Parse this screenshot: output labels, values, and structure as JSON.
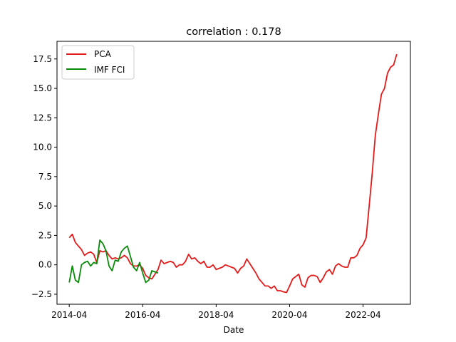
{
  "chart_data": {
    "type": "line",
    "title": "correlation : 0.178",
    "xlabel": "Date",
    "ylabel": "",
    "xlim": [
      "2013-12-01",
      "2023-07-15"
    ],
    "ylim": [
      -3.35,
      19.0
    ],
    "x_ticks": [
      "2014-04",
      "2016-04",
      "2018-04",
      "2020-04",
      "2022-04"
    ],
    "y_ticks": [
      -2.5,
      0.0,
      2.5,
      5.0,
      7.5,
      10.0,
      12.5,
      15.0,
      17.5
    ],
    "y_tick_labels": [
      "−2.5",
      "0.0",
      "2.5",
      "5.0",
      "7.5",
      "10.0",
      "12.5",
      "15.0",
      "17.5"
    ],
    "legend": {
      "placement": "upper-left"
    },
    "colors": {
      "PCA": "#e41a1a",
      "IMF FCI": "#0a8a0a"
    },
    "series": [
      {
        "name": "PCA",
        "color": "#e41a1a",
        "points": [
          [
            "2014-04",
            2.3
          ],
          [
            "2014-05",
            2.6
          ],
          [
            "2014-06",
            1.9
          ],
          [
            "2014-07",
            1.6
          ],
          [
            "2014-08",
            1.3
          ],
          [
            "2014-09",
            0.8
          ],
          [
            "2014-10",
            1.0
          ],
          [
            "2014-11",
            1.1
          ],
          [
            "2014-12",
            0.9
          ],
          [
            "2015-01",
            0.2
          ],
          [
            "2015-02",
            1.2
          ],
          [
            "2015-03",
            1.1
          ],
          [
            "2015-04",
            1.2
          ],
          [
            "2015-05",
            0.8
          ],
          [
            "2015-06",
            0.5
          ],
          [
            "2015-07",
            0.6
          ],
          [
            "2015-08",
            0.5
          ],
          [
            "2015-09",
            0.6
          ],
          [
            "2015-10",
            0.8
          ],
          [
            "2015-11",
            0.6
          ],
          [
            "2015-12",
            0.1
          ],
          [
            "2016-01",
            -0.1
          ],
          [
            "2016-02",
            -0.1
          ],
          [
            "2016-03",
            0.0
          ],
          [
            "2016-04",
            -0.3
          ],
          [
            "2016-05",
            -0.9
          ],
          [
            "2016-06",
            -1.1
          ],
          [
            "2016-07",
            -1.2
          ],
          [
            "2016-08",
            -0.8
          ],
          [
            "2016-09",
            -0.4
          ],
          [
            "2016-10",
            0.4
          ],
          [
            "2016-11",
            0.1
          ],
          [
            "2016-12",
            0.2
          ],
          [
            "2017-01",
            0.3
          ],
          [
            "2017-02",
            0.2
          ],
          [
            "2017-03",
            -0.2
          ],
          [
            "2017-04",
            0.0
          ],
          [
            "2017-05",
            0.0
          ],
          [
            "2017-06",
            0.3
          ],
          [
            "2017-07",
            0.9
          ],
          [
            "2017-08",
            0.5
          ],
          [
            "2017-09",
            0.6
          ],
          [
            "2017-10",
            0.3
          ],
          [
            "2017-11",
            0.1
          ],
          [
            "2017-12",
            0.3
          ],
          [
            "2018-01",
            -0.2
          ],
          [
            "2018-02",
            -0.2
          ],
          [
            "2018-03",
            0.0
          ],
          [
            "2018-04",
            -0.4
          ],
          [
            "2018-05",
            -0.3
          ],
          [
            "2018-06",
            -0.2
          ],
          [
            "2018-07",
            0.0
          ],
          [
            "2018-08",
            -0.1
          ],
          [
            "2018-09",
            -0.2
          ],
          [
            "2018-10",
            -0.3
          ],
          [
            "2018-11",
            -0.7
          ],
          [
            "2018-12",
            -0.3
          ],
          [
            "2019-01",
            -0.1
          ],
          [
            "2019-02",
            0.5
          ],
          [
            "2019-03",
            0.1
          ],
          [
            "2019-04",
            -0.3
          ],
          [
            "2019-05",
            -0.7
          ],
          [
            "2019-06",
            -1.2
          ],
          [
            "2019-07",
            -1.5
          ],
          [
            "2019-08",
            -1.8
          ],
          [
            "2019-09",
            -1.8
          ],
          [
            "2019-10",
            -2.0
          ],
          [
            "2019-11",
            -1.8
          ],
          [
            "2019-12",
            -2.2
          ],
          [
            "2020-01",
            -2.2
          ],
          [
            "2020-02",
            -2.3
          ],
          [
            "2020-03",
            -2.35
          ],
          [
            "2020-04",
            -1.8
          ],
          [
            "2020-05",
            -1.2
          ],
          [
            "2020-06",
            -1.0
          ],
          [
            "2020-07",
            -0.8
          ],
          [
            "2020-08",
            -1.7
          ],
          [
            "2020-09",
            -1.9
          ],
          [
            "2020-10",
            -1.1
          ],
          [
            "2020-11",
            -0.9
          ],
          [
            "2020-12",
            -0.9
          ],
          [
            "2021-01",
            -1.0
          ],
          [
            "2021-02",
            -1.5
          ],
          [
            "2021-03",
            -1.1
          ],
          [
            "2021-04",
            -0.6
          ],
          [
            "2021-05",
            -0.4
          ],
          [
            "2021-06",
            -0.8
          ],
          [
            "2021-07",
            -0.1
          ],
          [
            "2021-08",
            0.1
          ],
          [
            "2021-09",
            -0.1
          ],
          [
            "2021-10",
            -0.2
          ],
          [
            "2021-11",
            -0.2
          ],
          [
            "2021-12",
            0.6
          ],
          [
            "2022-01",
            0.6
          ],
          [
            "2022-02",
            0.8
          ],
          [
            "2022-03",
            1.4
          ],
          [
            "2022-04",
            1.7
          ],
          [
            "2022-05",
            2.3
          ],
          [
            "2022-06",
            5.0
          ],
          [
            "2022-07",
            7.8
          ],
          [
            "2022-08",
            11.0
          ],
          [
            "2022-09",
            12.8
          ],
          [
            "2022-10",
            14.5
          ],
          [
            "2022-11",
            15.0
          ],
          [
            "2022-12",
            16.3
          ],
          [
            "2023-01",
            16.8
          ],
          [
            "2023-02",
            17.0
          ],
          [
            "2023-03",
            17.9
          ]
        ]
      },
      {
        "name": "IMF FCI",
        "color": "#0a8a0a",
        "points": [
          [
            "2014-04",
            -1.5
          ],
          [
            "2014-05",
            -0.1
          ],
          [
            "2014-06",
            -1.3
          ],
          [
            "2014-07",
            -1.5
          ],
          [
            "2014-08",
            0.0
          ],
          [
            "2014-09",
            0.2
          ],
          [
            "2014-10",
            0.3
          ],
          [
            "2014-11",
            -0.1
          ],
          [
            "2014-12",
            0.2
          ],
          [
            "2015-01",
            0.1
          ],
          [
            "2015-02",
            2.1
          ],
          [
            "2015-03",
            1.8
          ],
          [
            "2015-04",
            1.2
          ],
          [
            "2015-05",
            -0.1
          ],
          [
            "2015-06",
            -0.5
          ],
          [
            "2015-07",
            0.4
          ],
          [
            "2015-08",
            0.3
          ],
          [
            "2015-09",
            1.1
          ],
          [
            "2015-10",
            1.4
          ],
          [
            "2015-11",
            1.6
          ],
          [
            "2015-12",
            0.7
          ],
          [
            "2016-01",
            -0.2
          ],
          [
            "2016-02",
            -0.5
          ],
          [
            "2016-03",
            0.2
          ],
          [
            "2016-04",
            -0.7
          ],
          [
            "2016-05",
            -1.5
          ],
          [
            "2016-06",
            -1.3
          ],
          [
            "2016-07",
            -0.5
          ],
          [
            "2016-08",
            -0.6
          ],
          [
            "2016-09",
            -0.7
          ]
        ]
      }
    ]
  }
}
